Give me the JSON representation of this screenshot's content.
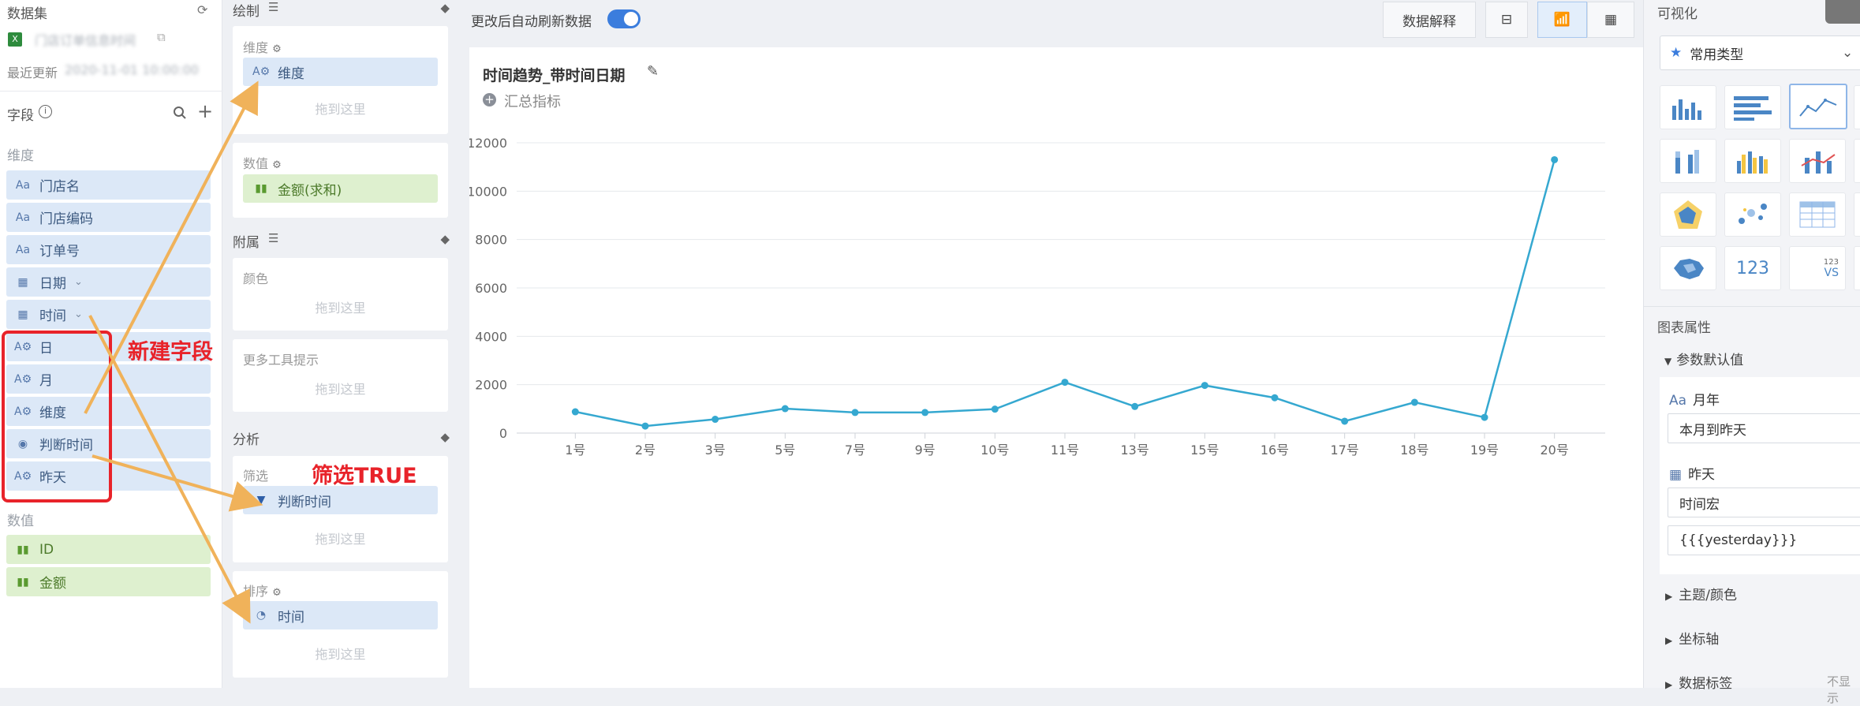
{
  "left": {
    "dataset_title": "数据集",
    "dataset_name": "门店订单信息时间",
    "last_update_label": "最近更新",
    "last_update_value": "2020-11-01 10:00:00",
    "fields_title": "字段",
    "dim_section": "维度",
    "meas_section": "数值",
    "dimensions": [
      "门店名",
      "门店编码",
      "订单号",
      "日期",
      "时间",
      "日",
      "月",
      "维度",
      "判断时间",
      "昨天"
    ],
    "measures": [
      "ID",
      "金额"
    ]
  },
  "mid": {
    "draw_title": "绘制",
    "dim_label": "维度",
    "dim_pill": "维度",
    "val_label": "数值",
    "val_pill": "金额(求和)",
    "attach_title": "附属",
    "color_label": "颜色",
    "tooltip_label": "更多工具提示",
    "analysis_title": "分析",
    "filter_label": "筛选",
    "filter_pill": "判断时间",
    "sort_label": "排序",
    "sort_pill": "时间",
    "drop_hint": "拖到这里"
  },
  "toolbar": {
    "auto_refresh": "更改后自动刷新数据",
    "explain_button": "数据解释"
  },
  "chart_header": {
    "title": "时间趋势_带时间日期",
    "summary": "汇总指标"
  },
  "right": {
    "viz_title": "可视化",
    "type_select": "常用类型",
    "kpi_icon_text": "123",
    "kpi_vs_text": "VS",
    "kpi_small_text": "123",
    "props_title": "图表属性",
    "params_section": "参数默认值",
    "param1_label": "月年",
    "param1_value": "本月到昨天",
    "param2_label": "昨天",
    "param2_value": "时间宏",
    "param2_expr": "{{{yesterday}}}",
    "theme_section": "主题/颜色",
    "axis_section": "坐标轴",
    "label_section": "数据标签",
    "label_hidden": "不显示"
  },
  "annotations": {
    "new_field": "新建字段",
    "filter_true": "筛选TRUE"
  },
  "colors": {
    "line": "#35a8d0",
    "accent": "#3b7ddd",
    "annotation_red": "#e8232a",
    "annotation_arrow": "#f0b25a"
  },
  "chart_data": {
    "type": "line",
    "categories": [
      "1号",
      "2号",
      "3号",
      "5号",
      "7号",
      "9号",
      "10号",
      "11号",
      "13号",
      "15号",
      "16号",
      "17号",
      "18号",
      "19号",
      "20号"
    ],
    "values": [
      880,
      290,
      570,
      1010,
      850,
      850,
      990,
      2100,
      1100,
      1970,
      1460,
      490,
      1270,
      650,
      11300
    ],
    "yticks": [
      "0",
      "2000",
      "4000",
      "6000",
      "8000",
      "10000",
      "12000"
    ],
    "ylim": [
      0,
      12000
    ],
    "grid": true
  }
}
